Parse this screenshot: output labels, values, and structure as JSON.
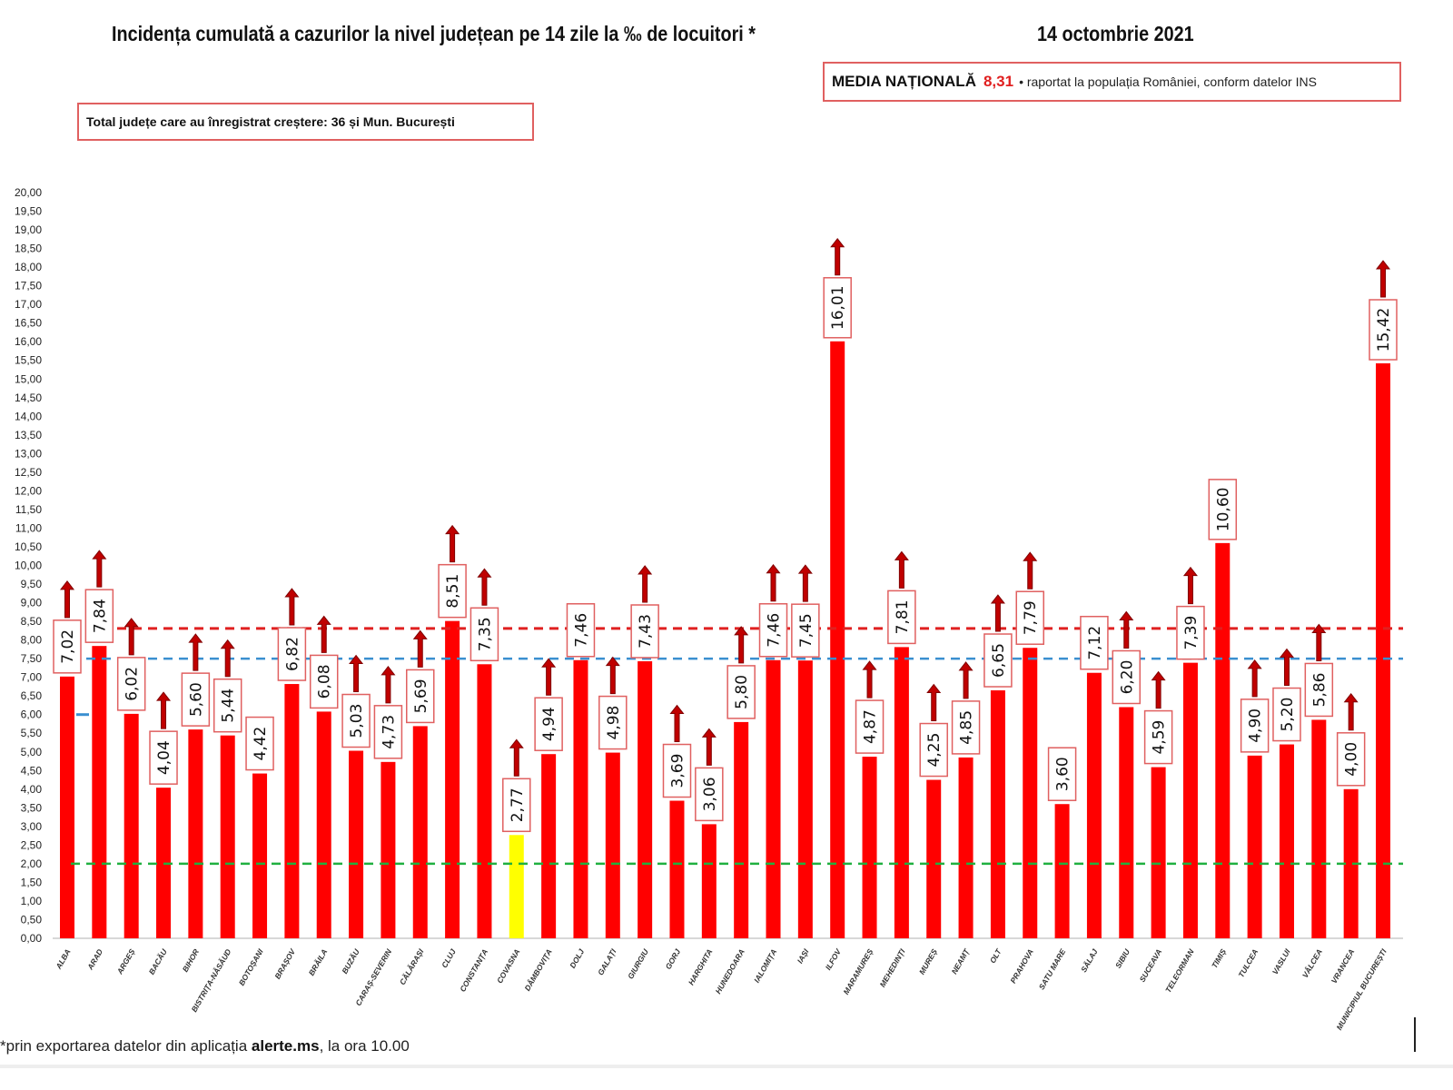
{
  "header": {
    "title": "Incidența cumulată a cazurilor la nivel județean pe 14 zile la ‰ de locuitori *",
    "date": "14 octombrie 2021"
  },
  "media_box": {
    "label": "MEDIA NAȚIONALĂ",
    "value": "8,31",
    "suffix": "• raportat la populația României, conform datelor INS"
  },
  "total_box": {
    "text": "Total județe care au înregistrat creștere:  36 și Mun. București"
  },
  "footnote": {
    "prefix": "*prin exportarea  datelor din aplicația ",
    "app": "alerte.ms",
    "suffix": ", la ora 10.00"
  },
  "colors": {
    "bar": "#ff0000",
    "highlight_bar": "#ffff00",
    "arrow": "#c00000",
    "national_line": "#e02020",
    "blue_line": "#3a8fd0",
    "green_line": "#20b040",
    "label_border": "#e06060"
  },
  "chart_data": {
    "type": "bar",
    "ylim": [
      0,
      20
    ],
    "ytick_step": 0.5,
    "ytick_labels": [
      "0,00",
      "0,50",
      "1,00",
      "1,50",
      "2,00",
      "2,50",
      "3,00",
      "3,50",
      "4,00",
      "4,50",
      "5,00",
      "5,50",
      "6,00",
      "6,50",
      "7,00",
      "7,50",
      "8,00",
      "8,50",
      "9,00",
      "9,50",
      "10,00",
      "10,50",
      "11,00",
      "11,50",
      "12,00",
      "12,50",
      "13,00",
      "13,50",
      "14,00",
      "14,50",
      "15,00",
      "15,50",
      "16,00",
      "16,50",
      "17,00",
      "17,50",
      "18,00",
      "18,50",
      "19,00",
      "19,50",
      "20,00"
    ],
    "categories": [
      "ALBA",
      "ARAD",
      "ARGEȘ",
      "BACĂU",
      "BIHOR",
      "BISTRIȚA-NĂSĂUD",
      "BOTOȘANI",
      "BRAȘOV",
      "BRĂILA",
      "BUZĂU",
      "CARAȘ-SEVERIN",
      "CĂLĂRAȘI",
      "CLUJ",
      "CONSTANȚA",
      "COVASNA",
      "DÂMBOVIȚA",
      "DOLJ",
      "GALAȚI",
      "GIURGIU",
      "GORJ",
      "HARGHITA",
      "HUNEDOARA",
      "IALOMIȚA",
      "IAȘI",
      "ILFOV",
      "MARAMUREȘ",
      "MEHEDINȚI",
      "MUREȘ",
      "NEAMȚ",
      "OLT",
      "PRAHOVA",
      "SATU MARE",
      "SĂLAJ",
      "SIBIU",
      "SUCEAVA",
      "TELEORMAN",
      "TIMIȘ",
      "TULCEA",
      "VASLUI",
      "VÂLCEA",
      "VRANCEA",
      "MUNICIPIUL BUCUREȘTI"
    ],
    "values": [
      7.02,
      7.84,
      6.02,
      4.04,
      5.6,
      5.44,
      4.42,
      6.82,
      6.08,
      5.03,
      4.73,
      5.69,
      8.51,
      7.35,
      2.77,
      4.94,
      7.46,
      4.98,
      7.43,
      3.69,
      3.06,
      5.8,
      7.46,
      7.45,
      16.01,
      4.87,
      7.81,
      4.25,
      4.85,
      6.65,
      7.79,
      3.6,
      7.12,
      6.2,
      4.59,
      7.39,
      10.6,
      4.9,
      5.2,
      5.86,
      4.0,
      15.42
    ],
    "value_labels": [
      "7,02",
      "7,84",
      "6,02",
      "4,04",
      "5,60",
      "5,44",
      "4,42",
      "6,82",
      "6,08",
      "5,03",
      "4,73",
      "5,69",
      "8,51",
      "7,35",
      "2,77",
      "4,94",
      "7,46",
      "4,98",
      "7,43",
      "3,69",
      "3,06",
      "5,80",
      "7,46",
      "7,45",
      "16,01",
      "4,87",
      "7,81",
      "4,25",
      "4,85",
      "6,65",
      "7,79",
      "3,60",
      "7,12",
      "6,20",
      "4,59",
      "7,39",
      "10,60",
      "4,90",
      "5,20",
      "5,86",
      "4,00",
      "15,42"
    ],
    "increase": [
      true,
      true,
      true,
      true,
      true,
      true,
      false,
      true,
      true,
      true,
      true,
      true,
      true,
      true,
      true,
      true,
      false,
      true,
      true,
      true,
      true,
      true,
      true,
      true,
      true,
      true,
      true,
      true,
      true,
      true,
      true,
      false,
      false,
      true,
      true,
      true,
      false,
      true,
      true,
      true,
      true,
      true
    ],
    "highlight_category": "COVASNA",
    "reference_lines": [
      {
        "value": 8.31,
        "color": "#e02020",
        "style": "dashed"
      },
      {
        "value": 7.5,
        "color": "#3a8fd0",
        "style": "dashed"
      },
      {
        "value": 2.0,
        "color": "#20b040",
        "style": "dashed"
      }
    ],
    "grid": false,
    "legend": "none"
  }
}
